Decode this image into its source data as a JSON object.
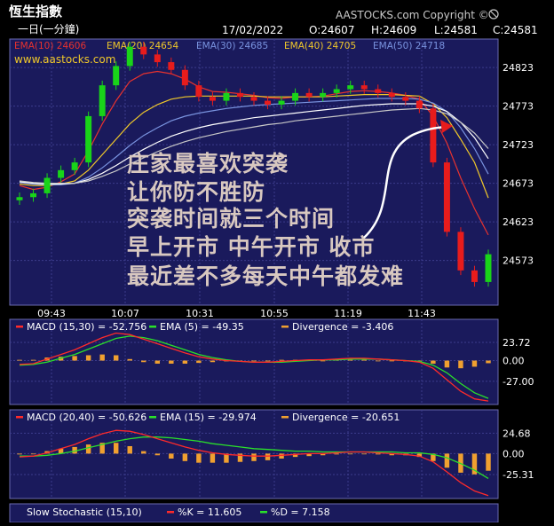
{
  "header": {
    "title": "恆生指數",
    "interval": "一日(一分鐘)",
    "copyright": "AASTOCKS.com Copyright ©",
    "website": "www.aastocks.com",
    "quote": {
      "date": "17/02/2022",
      "open": "O:24607",
      "high": "H:24609",
      "low": "L:24581",
      "close": "C:24581"
    }
  },
  "colors": {
    "background": "#000000",
    "panel": "#1a1a5c",
    "grid": "#3c3c8c",
    "up": "#19d419",
    "down": "#e81c1c",
    "ema10": "#e8322e",
    "ema20": "#f0c82a",
    "ema30": "#7a94e0",
    "ema40": "#ffffff",
    "ema50": "#c8c8c8",
    "macd": "#ff2a2a",
    "signal": "#2ae02a",
    "divergence": "#f0a030",
    "annotation": "#d8c8c0"
  },
  "annotation": {
    "lines": [
      "庄家最喜欢突袭",
      "让你防不胜防",
      "突袭时间就三个时间",
      "早上开市  中午开市  收市",
      "最近差不多每天中午都发难"
    ]
  },
  "legends": {
    "price": [
      {
        "text": "EMA(10) 24606",
        "color": "#e8322e"
      },
      {
        "text": "EMA(20) 24654",
        "color": "#f0c82a"
      },
      {
        "text": "EMA(30) 24685",
        "color": "#7a94e0"
      },
      {
        "text": "EMA(40) 24705",
        "color": "#f0c82a"
      },
      {
        "text": "EMA(50) 24718",
        "color": "#7a94e0"
      }
    ],
    "macd1": [
      {
        "text": "MACD (15,30) = -52.756",
        "color": "#ff2a2a"
      },
      {
        "text": "EMA (5) = -49.35",
        "color": "#2ae02a"
      },
      {
        "text": "Divergence = -3.406",
        "color": "#f0a030"
      }
    ],
    "macd2": [
      {
        "text": "MACD (20,40) = -50.626",
        "color": "#ff2a2a"
      },
      {
        "text": "EMA (15) = -29.974",
        "color": "#2ae02a"
      },
      {
        "text": "Divergence = -20.651",
        "color": "#f0a030"
      }
    ],
    "stoch": [
      {
        "text": "Slow Stochastic (15,10)",
        "color": "#ffffff"
      },
      {
        "text": "%K = 11.605",
        "color": "#ff2a2a"
      },
      {
        "text": "%D = 7.158",
        "color": "#2ae02a"
      }
    ]
  },
  "chart_data": [
    {
      "type": "line",
      "subtype": "candlestick",
      "title": "恆生指數 一日(一分鐘)",
      "x_ticks": [
        "09:43",
        "10:07",
        "10:31",
        "10:55",
        "11:19",
        "11:43"
      ],
      "y_ticks": [
        24823,
        24773,
        24723,
        24673,
        24623,
        24573
      ],
      "ylim": [
        24515,
        24860
      ],
      "grid": true,
      "series": [
        {
          "name": "Close",
          "values": [
            24655,
            24660,
            24680,
            24690,
            24700,
            24760,
            24800,
            24825,
            24850,
            24840,
            24830,
            24820,
            24800,
            24785,
            24780,
            24790,
            24785,
            24780,
            24775,
            24780,
            24790,
            24785,
            24790,
            24795,
            24800,
            24795,
            24790,
            24785,
            24780,
            24770,
            24700,
            24610,
            24560,
            24545,
            24581
          ]
        },
        {
          "name": "EMA(10)",
          "values": [
            24670,
            24665,
            24668,
            24675,
            24685,
            24715,
            24750,
            24780,
            24805,
            24815,
            24818,
            24815,
            24808,
            24798,
            24792,
            24791,
            24789,
            24787,
            24784,
            24783,
            24785,
            24785,
            24786,
            24789,
            24792,
            24793,
            24792,
            24790,
            24787,
            24782,
            24760,
            24725,
            24680,
            24640,
            24606
          ]
        },
        {
          "name": "EMA(20)",
          "values": [
            24672,
            24670,
            24670,
            24672,
            24676,
            24690,
            24710,
            24730,
            24750,
            24765,
            24775,
            24782,
            24785,
            24786,
            24786,
            24786,
            24786,
            24786,
            24785,
            24785,
            24785,
            24785,
            24785,
            24786,
            24787,
            24788,
            24788,
            24788,
            24787,
            24786,
            24776,
            24758,
            24730,
            24700,
            24654
          ]
        },
        {
          "name": "EMA(30)",
          "values": [
            24674,
            24672,
            24671,
            24671,
            24673,
            24681,
            24693,
            24707,
            24722,
            24735,
            24745,
            24754,
            24760,
            24764,
            24767,
            24770,
            24772,
            24774,
            24775,
            24776,
            24777,
            24778,
            24779,
            24780,
            24781,
            24782,
            24783,
            24783,
            24783,
            24782,
            24777,
            24766,
            24745,
            24718,
            24685
          ]
        },
        {
          "name": "EMA(40)",
          "values": [
            24675,
            24673,
            24672,
            24672,
            24673,
            24678,
            24686,
            24696,
            24707,
            24717,
            24726,
            24734,
            24740,
            24745,
            24749,
            24752,
            24755,
            24758,
            24760,
            24762,
            24764,
            24766,
            24768,
            24770,
            24772,
            24774,
            24775,
            24776,
            24776,
            24776,
            24773,
            24766,
            24752,
            24732,
            24705
          ]
        },
        {
          "name": "EMA(50)",
          "values": [
            24676,
            24674,
            24673,
            24673,
            24673,
            24676,
            24682,
            24689,
            24698,
            24706,
            24714,
            24721,
            24727,
            24732,
            24736,
            24740,
            24743,
            24746,
            24749,
            24751,
            24754,
            24756,
            24758,
            24760,
            24762,
            24764,
            24766,
            24768,
            24769,
            24770,
            24768,
            24763,
            24752,
            24738,
            24718
          ]
        }
      ],
      "annotations": [
        "庄家最喜欢突袭",
        "让你防不胜防",
        "突袭时间就三个时间",
        "早上开市  中午开市  收市",
        "最近差不多每天中午都发难"
      ]
    },
    {
      "type": "line",
      "title": "MACD (15,30)",
      "y_ticks": [
        "23.72",
        "0.00",
        "-27.00"
      ],
      "ylim": [
        -55,
        40
      ],
      "series": [
        {
          "name": "MACD (15,30)",
          "values": [
            -5,
            -4,
            2,
            8,
            14,
            22,
            30,
            36,
            34,
            28,
            22,
            16,
            10,
            5,
            2,
            0,
            -1,
            -2,
            -2,
            -1,
            0,
            1,
            1,
            2,
            3,
            3,
            2,
            1,
            0,
            -2,
            -10,
            -25,
            -40,
            -50,
            -52.756
          ]
        },
        {
          "name": "EMA (5)",
          "values": [
            -6,
            -5,
            -2,
            3,
            8,
            15,
            22,
            29,
            32,
            30,
            26,
            20,
            14,
            8,
            4,
            1,
            -1,
            -2,
            -2,
            -2,
            -1,
            0,
            1,
            1,
            2,
            2,
            2,
            1,
            0,
            -1,
            -6,
            -16,
            -30,
            -42,
            -49.35
          ]
        },
        {
          "name": "Divergence",
          "values": [
            1,
            1,
            4,
            5,
            6,
            7,
            8,
            7,
            2,
            -2,
            -4,
            -4,
            -4,
            -3,
            -2,
            -1,
            0,
            0,
            0,
            1,
            1,
            1,
            0,
            1,
            1,
            1,
            0,
            0,
            0,
            -1,
            -4,
            -9,
            -10,
            -8,
            -3.406
          ]
        }
      ]
    },
    {
      "type": "line",
      "title": "MACD (20,40)",
      "y_ticks": [
        "24.68",
        "0.00",
        "-25.31"
      ],
      "ylim": [
        -52,
        40
      ],
      "series": [
        {
          "name": "MACD (20,40)",
          "values": [
            -4,
            -3,
            1,
            6,
            11,
            18,
            24,
            28,
            27,
            23,
            18,
            13,
            8,
            4,
            1,
            -1,
            -2,
            -3,
            -3,
            -2,
            -1,
            0,
            0,
            1,
            2,
            2,
            1,
            0,
            -1,
            -3,
            -10,
            -22,
            -35,
            -45,
            -50.626
          ]
        },
        {
          "name": "EMA (15)",
          "values": [
            -3,
            -3,
            -2,
            0,
            3,
            7,
            11,
            15,
            18,
            20,
            20,
            19,
            17,
            15,
            12,
            10,
            8,
            6,
            5,
            4,
            3,
            3,
            2,
            2,
            2,
            2,
            2,
            2,
            1,
            1,
            -1,
            -5,
            -12,
            -20,
            -29.974
          ]
        },
        {
          "name": "Divergence",
          "values": [
            -1,
            0,
            3,
            6,
            8,
            11,
            13,
            13,
            9,
            3,
            -2,
            -6,
            -9,
            -11,
            -11,
            -11,
            -10,
            -9,
            -8,
            -6,
            -4,
            -3,
            -2,
            -1,
            0,
            0,
            -1,
            -2,
            -2,
            -4,
            -9,
            -17,
            -23,
            -25,
            -20.651
          ]
        }
      ]
    },
    {
      "type": "line",
      "title": "Slow Stochastic (15,10)",
      "series": [
        {
          "name": "%K",
          "values": [
            11.605
          ]
        },
        {
          "name": "%D",
          "values": [
            7.158
          ]
        }
      ]
    }
  ]
}
